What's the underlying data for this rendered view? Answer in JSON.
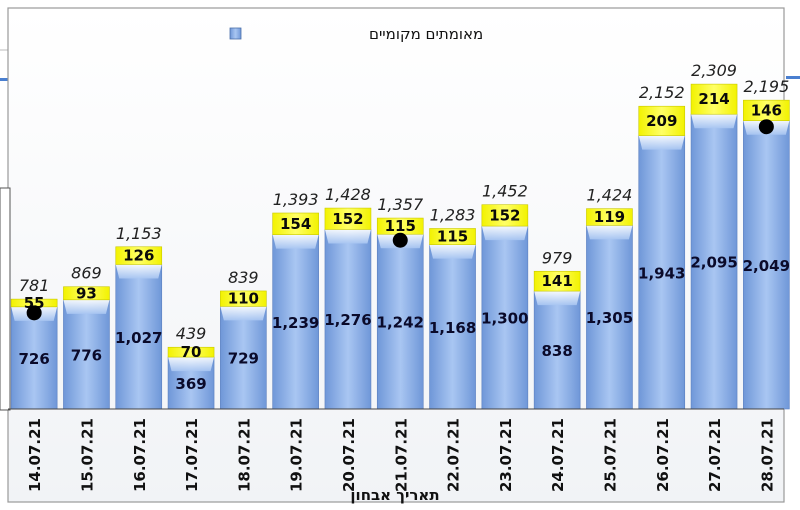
{
  "chart_data": {
    "type": "bar",
    "stacked": true,
    "categories": [
      "14.07.21",
      "15.07.21",
      "16.07.21",
      "17.07.21",
      "18.07.21",
      "19.07.21",
      "20.07.21",
      "21.07.21",
      "22.07.21",
      "23.07.21",
      "24.07.21",
      "25.07.21",
      "26.07.21",
      "27.07.21",
      "28.07.21"
    ],
    "series": [
      {
        "name": "מאומתים מקומיים",
        "color": "#8fb4ea",
        "values": [
          726,
          776,
          1027,
          369,
          729,
          1239,
          1276,
          1242,
          1168,
          1300,
          838,
          1305,
          1943,
          2095,
          2049
        ]
      },
      {
        "name": "",
        "color": "#ffff00",
        "values": [
          55,
          93,
          126,
          70,
          110,
          154,
          152,
          115,
          115,
          152,
          141,
          119,
          209,
          214,
          146
        ]
      }
    ],
    "bottom_labels": [
      "726",
      "776",
      "1,027",
      "369",
      "729",
      "1,239",
      "1,276",
      "1,242",
      "1,168",
      "1,300",
      "838",
      "1,305",
      "1,943",
      "2,095",
      "2,049"
    ],
    "top_labels": [
      "55",
      "93",
      "126",
      "70",
      "110",
      "154",
      "152",
      "115",
      "115",
      "152",
      "141",
      "119",
      "209",
      "214",
      "146"
    ],
    "totals": [
      781,
      869,
      1153,
      439,
      839,
      1393,
      1428,
      1357,
      1283,
      1452,
      979,
      1424,
      2152,
      2309,
      2195
    ],
    "total_labels": [
      "781",
      "869",
      "1,153",
      "439",
      "839",
      "1,393",
      "1,428",
      "1,357",
      "1,283",
      "1,452",
      "979",
      "1,424",
      "2,152",
      "2,309",
      "2,195"
    ],
    "markers": [
      {
        "category": "14.07.21",
        "y": 726
      },
      {
        "category": "21.07.21",
        "y": 1242
      },
      {
        "category": "28.07.21",
        "y": 2049
      }
    ],
    "xlabel": "תאריך אבחון",
    "ylabel": "",
    "title": "",
    "ylim": [
      0,
      2500
    ],
    "legend_position": "top",
    "grid": false
  }
}
